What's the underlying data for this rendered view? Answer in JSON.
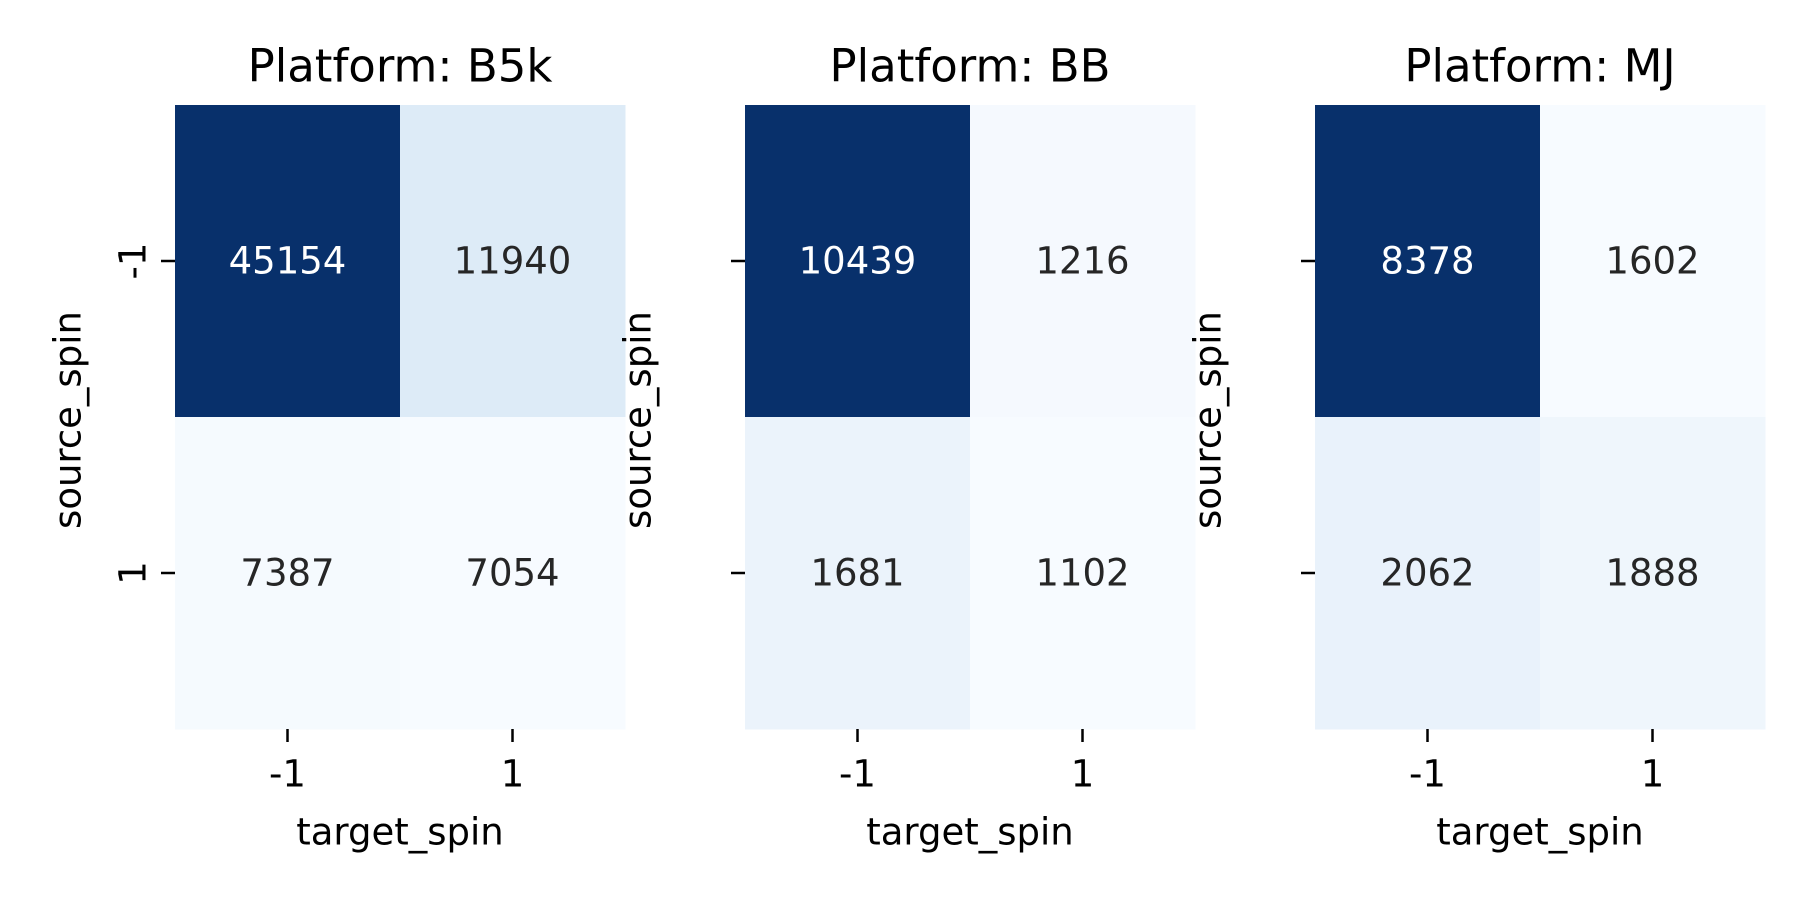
{
  "chart_data": [
    {
      "type": "heatmap",
      "title": "Platform: B5k",
      "xlabel": "target_spin",
      "ylabel": "source_spin",
      "x_categories": [
        "-1",
        "1"
      ],
      "y_categories": [
        "-1",
        "1"
      ],
      "values": [
        [
          45154,
          11940
        ],
        [
          7387,
          7054
        ]
      ],
      "colormap": "Blues",
      "colorbar": false,
      "annotations": true
    },
    {
      "type": "heatmap",
      "title": "Platform: BB",
      "xlabel": "target_spin",
      "ylabel": "source_spin",
      "x_categories": [
        "-1",
        "1"
      ],
      "y_categories": [
        "-1",
        "1"
      ],
      "values": [
        [
          10439,
          1216
        ],
        [
          1681,
          1102
        ]
      ],
      "colormap": "Blues",
      "colorbar": false,
      "annotations": true
    },
    {
      "type": "heatmap",
      "title": "Platform: MJ",
      "xlabel": "target_spin",
      "ylabel": "source_spin",
      "x_categories": [
        "-1",
        "1"
      ],
      "y_categories": [
        "-1",
        "1"
      ],
      "values": [
        [
          8378,
          1602
        ],
        [
          2062,
          1888
        ]
      ],
      "colormap": "Blues",
      "colorbar": false,
      "annotations": true
    }
  ],
  "colors": {
    "low": "#f7fbff",
    "high": "#08306b",
    "text_dark": "#262626",
    "text_light": "#ffffff"
  }
}
